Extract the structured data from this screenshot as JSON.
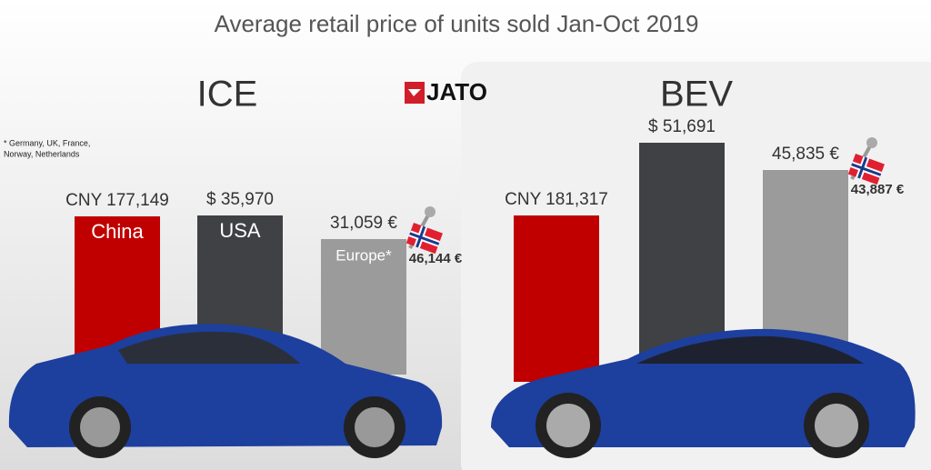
{
  "title": "Average retail price of units sold Jan-Oct 2019",
  "logo": "JATO",
  "footnote": [
    "* Germany, UK, France,",
    "Norway, Netherlands"
  ],
  "panels": [
    {
      "heading": "ICE",
      "bars": [
        {
          "label": "CNY 177,149",
          "name": "China",
          "color": "#c00000"
        },
        {
          "label": "$ 35,970",
          "name": "USA",
          "color": "#404145"
        },
        {
          "label": "31,059 €",
          "name": "Europe*",
          "color": "#9b9b9b",
          "flag_label": "46,144 €"
        }
      ]
    },
    {
      "heading": "BEV",
      "bars": [
        {
          "label": "CNY 181,317",
          "color": "#c00000"
        },
        {
          "label": "$ 51,691",
          "color": "#404145"
        },
        {
          "label": "45,835 €",
          "color": "#9b9b9b",
          "flag_label": "43,887 €"
        }
      ]
    }
  ]
}
